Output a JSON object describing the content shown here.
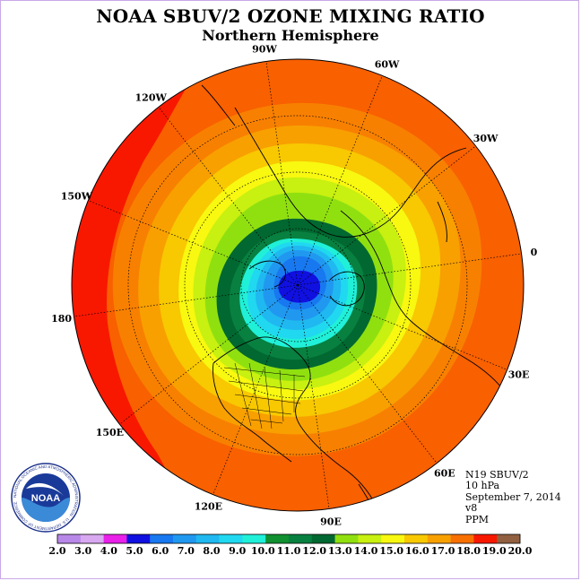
{
  "title": "NOAA SBUV/2 OZONE MIXING RATIO",
  "subtitle": "Northern Hemisphere",
  "info": {
    "satellite": "N19 SBUV/2",
    "level": "10 hPa",
    "date": "September 7, 2014",
    "version": "v8",
    "units": "PPM"
  },
  "logo": {
    "text": "NOAA",
    "ring_text": "NATIONAL OCEANIC AND ATMOSPHERIC ADMINISTRATION · U.S. DEPARTMENT OF COMMERCE"
  },
  "longitude_labels": [
    {
      "label": "0",
      "lon": 0
    },
    {
      "label": "30E",
      "lon": 30
    },
    {
      "label": "60E",
      "lon": 60
    },
    {
      "label": "90E",
      "lon": 90
    },
    {
      "label": "120E",
      "lon": 120
    },
    {
      "label": "150E",
      "lon": 150
    },
    {
      "label": "180",
      "lon": 180
    },
    {
      "label": "150W",
      "lon": -150
    },
    {
      "label": "120W",
      "lon": -120
    },
    {
      "label": "90W",
      "lon": -90
    },
    {
      "label": "60W",
      "lon": -60
    },
    {
      "label": "30W",
      "lon": -30
    }
  ],
  "colorbar": {
    "ticks": [
      "2.0",
      "3.0",
      "4.0",
      "5.0",
      "6.0",
      "7.0",
      "8.0",
      "9.0",
      "10.0",
      "11.0",
      "12.0",
      "13.0",
      "14.0",
      "15.0",
      "16.0",
      "17.0",
      "18.0",
      "19.0",
      "20.0"
    ],
    "colors": [
      "#b888e8",
      "#d8a8f0",
      "#e820e8",
      "#1010e0",
      "#1878f0",
      "#2098f0",
      "#20b8f0",
      "#20d8f0",
      "#20f0d8",
      "#109030",
      "#088040",
      "#006830",
      "#90e010",
      "#c8f010",
      "#f8f810",
      "#f8c800",
      "#f8a000",
      "#f87000",
      "#f81800",
      "#906040"
    ]
  },
  "field": {
    "center_value": 5.5,
    "note_colors": {
      "ocean_outer": "#f86000",
      "outer_red": "#f81800"
    }
  }
}
